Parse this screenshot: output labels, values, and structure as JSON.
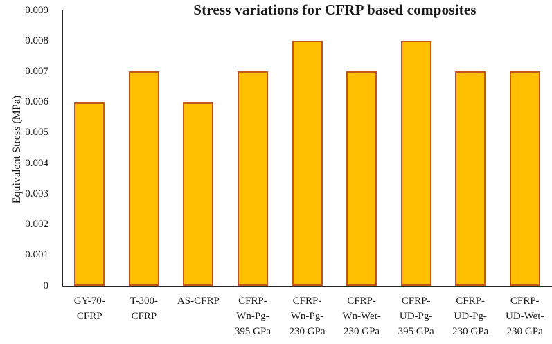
{
  "chart_data": {
    "type": "bar",
    "title": "Stress variations for CFRP based composites",
    "xlabel": "",
    "ylabel": "Equivalent Stress (MPa)",
    "categories": [
      "GY-70-CFRP",
      "T-300-CFRP",
      "AS-CFRP",
      "CFRP-Wn-Pg-395 GPa",
      "CFRP-Wn-Pg-230 GPa",
      "CFRP-Wn-Wet-230 GPa",
      "CFRP-UD-Pg-395 GPa",
      "CFRP-UD-Pg-230 GPa",
      "CFRP-UD-Wet-230 GPa"
    ],
    "category_label_lines": [
      [
        "GY-70-",
        "CFRP"
      ],
      [
        "T-300-",
        "CFRP"
      ],
      [
        "AS-CFRP"
      ],
      [
        "CFRP-",
        "Wn-Pg-",
        "395 GPa"
      ],
      [
        "CFRP-",
        "Wn-Pg-",
        "230 GPa"
      ],
      [
        "CFRP-",
        "Wn-Wet-",
        "230 GPa"
      ],
      [
        "CFRP-",
        "UD-Pg-",
        "395 GPa"
      ],
      [
        "CFRP-",
        "UD-Pg-",
        "230 GPa"
      ],
      [
        "CFRP-",
        "UD-Wet-",
        "230 GPa"
      ]
    ],
    "values": [
      0.006,
      0.007,
      0.006,
      0.007,
      0.008,
      0.007,
      0.008,
      0.007,
      0.007
    ],
    "ylim": [
      0,
      0.009
    ],
    "ytick_step": 0.001,
    "ytick_labels": [
      "0",
      "0.001",
      "0.002",
      "0.003",
      "0.004",
      "0.005",
      "0.006",
      "0.007",
      "0.008",
      "0.009"
    ],
    "grid": false,
    "legend_position": "none",
    "colors": {
      "bar_fill": "#FEBF00",
      "bar_border": "#C4551A",
      "axis_line": "#262626",
      "text": "#1A1A1A"
    }
  }
}
